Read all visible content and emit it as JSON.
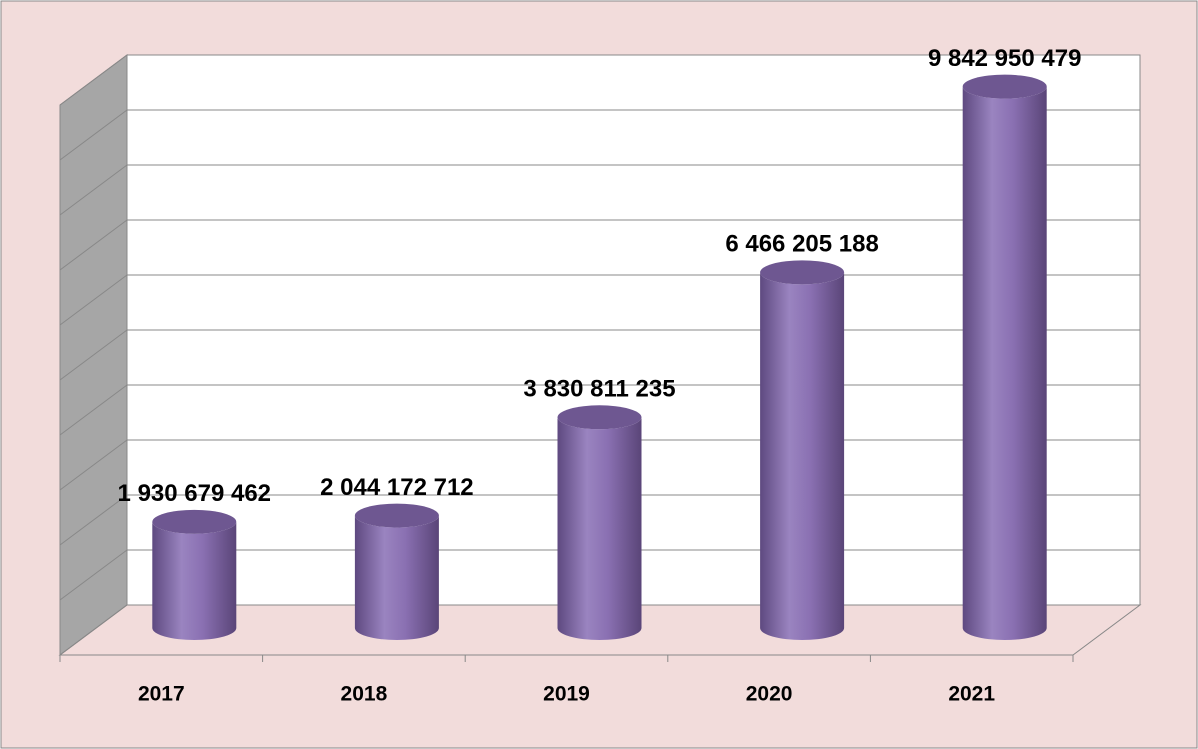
{
  "chart_data": {
    "type": "bar",
    "categories": [
      "2017",
      "2018",
      "2019",
      "2020",
      "2021"
    ],
    "values": [
      1930679462,
      2044172712,
      3830811235,
      6466205188,
      9842950479
    ],
    "value_labels": [
      "1 930 679 462",
      "2 044 172 712",
      "3 830 811 235",
      "6 466 205 188",
      "9 842 950 479"
    ],
    "color": "#8064a2",
    "ylim": [
      0,
      10000000000
    ],
    "yticks": [
      0,
      1000000000,
      2000000000,
      3000000000,
      4000000000,
      5000000000,
      6000000000,
      7000000000,
      8000000000,
      9000000000,
      10000000000
    ],
    "grid": true
  }
}
